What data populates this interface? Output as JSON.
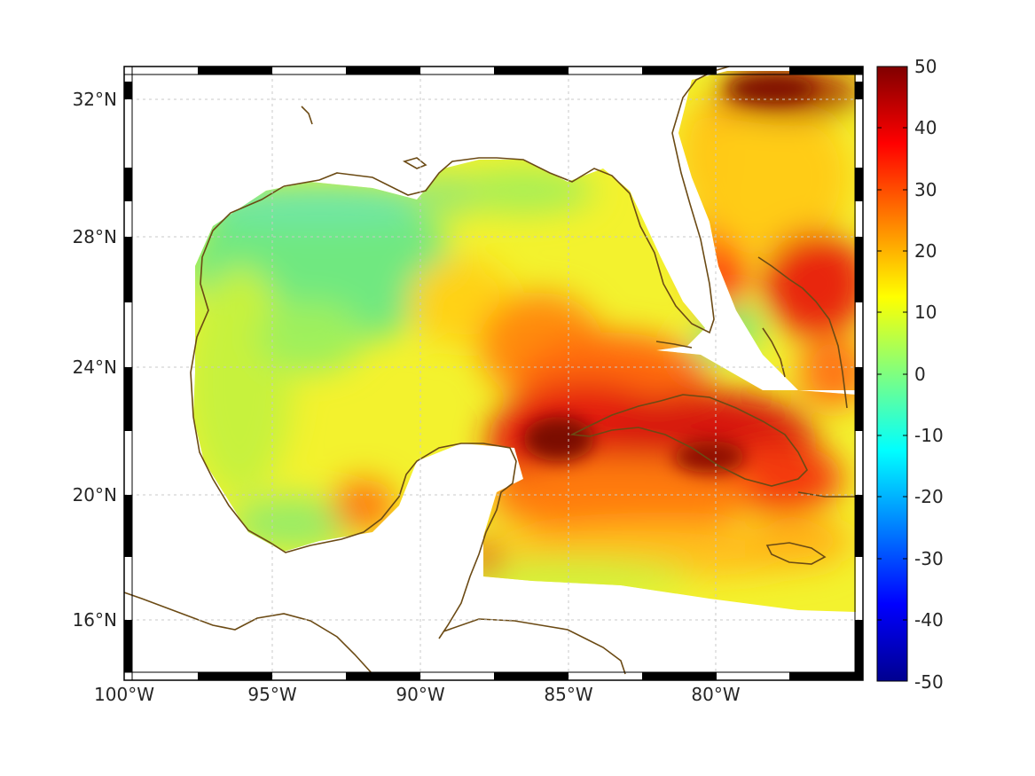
{
  "map": {
    "projection": "mercator",
    "lon_range_deg": [
      -100,
      -75
    ],
    "lat_range_deg": [
      14,
      33
    ],
    "grid": true,
    "x_ticks": [
      "100°W",
      "95°W",
      "90°W",
      "85°W",
      "80°W"
    ],
    "y_ticks": [
      "32°N",
      "28°N",
      "24°N",
      "20°N",
      "16°N"
    ],
    "coastline_color": "#6b4a14",
    "no_data_color": "#ffffff"
  },
  "colorbar": {
    "colormap": "jet",
    "range": [
      -50,
      50
    ],
    "ticks": [
      "50",
      "40",
      "30",
      "20",
      "10",
      "0",
      "-10",
      "-20",
      "-30",
      "-40",
      "-50"
    ],
    "placement": "right"
  },
  "field_summary": {
    "western_gulf": "+5 to +15",
    "eastern_gulf": "+15 to +30",
    "around_cuba": "+35 to +50",
    "east_of_florida": "+25 to +50",
    "south_caribbean_edge": "+5 to +15"
  }
}
